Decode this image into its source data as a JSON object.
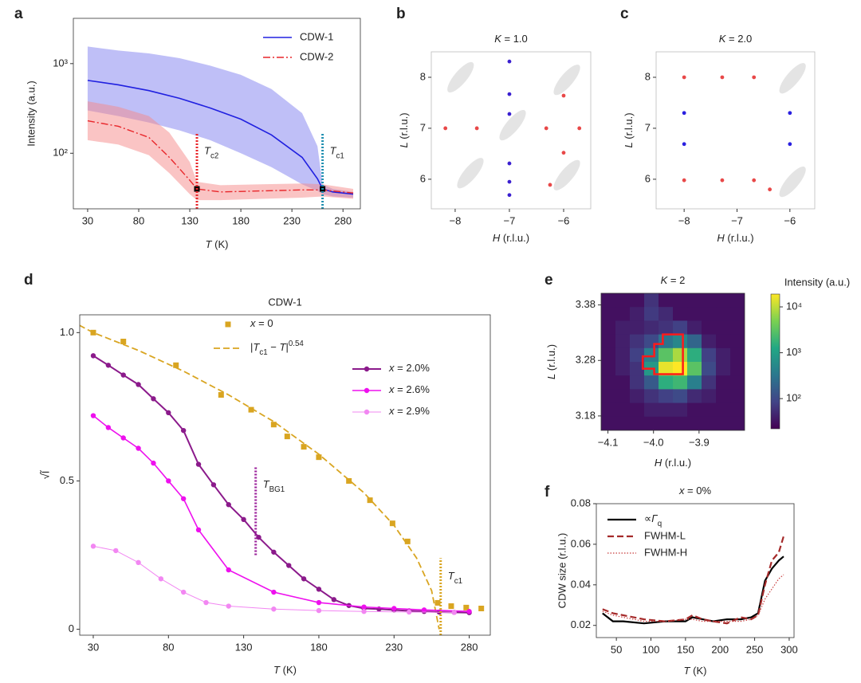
{
  "chart_data": [
    {
      "panel": "a",
      "type": "line",
      "ylog": true,
      "xlabel": [
        {
          "i": "T"
        },
        " (K)"
      ],
      "ylabel": "Intensity (a.u.)",
      "xlim": [
        16,
        297
      ],
      "ylim": [
        24,
        3200
      ],
      "xticks": [
        30,
        80,
        130,
        180,
        230,
        280
      ],
      "yticks": [
        {
          "value": 100,
          "label": "10²"
        },
        {
          "value": 1000,
          "label": "10³"
        }
      ],
      "legend": "upper right",
      "series": [
        {
          "name": "CDW-1",
          "color": "#2020e0",
          "dash": "solid",
          "linewidth": 1.6,
          "band_color": "#7f7ff0",
          "x": [
            30,
            60,
            90,
            120,
            150,
            180,
            210,
            240,
            255,
            260,
            270,
            290
          ],
          "values": [
            650,
            580,
            500,
            410,
            320,
            240,
            160,
            90,
            52,
            40,
            37,
            35
          ],
          "lower": [
            300,
            260,
            220,
            180,
            140,
            100,
            70,
            45,
            38,
            35,
            33,
            32
          ],
          "upper": [
            1550,
            1400,
            1300,
            1150,
            950,
            750,
            520,
            280,
            120,
            45,
            40,
            37
          ]
        },
        {
          "name": "CDW-2",
          "color": "#e8262a",
          "dash": "dashdot",
          "linewidth": 1.4,
          "band_color": "#f58a8a",
          "x": [
            30,
            60,
            90,
            110,
            130,
            137,
            160,
            200,
            240,
            260,
            290
          ],
          "values": [
            230,
            200,
            150,
            90,
            50,
            40,
            37,
            38,
            39,
            39,
            36
          ],
          "lower": [
            140,
            125,
            95,
            60,
            35,
            30,
            30,
            31,
            32,
            33,
            31
          ],
          "upper": [
            380,
            330,
            260,
            170,
            80,
            48,
            44,
            45,
            46,
            45,
            40
          ]
        }
      ],
      "markers": {
        "x": [
          137,
          260
        ],
        "y": [
          40,
          40
        ],
        "color": "#000000"
      },
      "vlines": [
        {
          "x": 137,
          "y": [
            24,
            170
          ],
          "color": "#e8262a",
          "label": [
            {
              "i": "T"
            },
            {
              "sub": "c2"
            }
          ]
        },
        {
          "x": 260,
          "y": [
            24,
            170
          ],
          "color": "#1f8fb0",
          "label": [
            {
              "i": "T"
            },
            {
              "sub": "c1"
            }
          ]
        }
      ]
    },
    {
      "panel": "b",
      "type": "scatter",
      "title": [
        {
          "i": "K"
        },
        " = 1.0"
      ],
      "xlabel": [
        {
          "i": "H"
        },
        " (r.l.u.)"
      ],
      "ylabel": [
        {
          "i": "L"
        },
        " (r.l.u.)"
      ],
      "xlim": [
        -8.44,
        -5.5
      ],
      "ylim": [
        5.42,
        8.5
      ],
      "xticks": [
        {
          "value": -8,
          "label": "−8"
        },
        {
          "value": -7,
          "label": "−7"
        },
        {
          "value": -6,
          "label": "−6"
        }
      ],
      "yticks": [
        6,
        7,
        8
      ],
      "series": [
        {
          "marker": "ellipse",
          "color": "#e4e4e4",
          "x": [
            -7.9,
            -5.94,
            -6.94,
            -7.72,
            -5.94
          ],
          "values": [
            8.0,
            7.95,
            7.06,
            6.12,
            6.08
          ]
        },
        {
          "marker": "dot",
          "color": "#3a1fd0",
          "x": [
            -7,
            -7,
            -7,
            -7,
            -7,
            -7
          ],
          "values": [
            8.31,
            7.67,
            7.28,
            6.31,
            5.95,
            5.69
          ]
        },
        {
          "marker": "dot",
          "color": "#e84848",
          "x": [
            -8.18,
            -7.6,
            -6.32,
            -5.71,
            -6.0,
            -6.0,
            -6.25
          ],
          "values": [
            7.0,
            7.0,
            7.0,
            7.0,
            7.64,
            6.52,
            5.89
          ]
        }
      ]
    },
    {
      "panel": "c",
      "type": "scatter",
      "title": [
        {
          "i": "K"
        },
        " = 2.0"
      ],
      "xlabel": [
        {
          "i": "H"
        },
        " (r.l.u.)"
      ],
      "ylabel": [
        {
          "i": "L"
        },
        " (r.l.u.)"
      ],
      "xlim": [
        -8.53,
        -5.53
      ],
      "ylim": [
        5.42,
        8.5
      ],
      "xticks": [
        {
          "value": -8,
          "label": "−8"
        },
        {
          "value": -7,
          "label": "−7"
        },
        {
          "value": -6,
          "label": "−6"
        }
      ],
      "yticks": [
        6,
        7,
        8
      ],
      "series": [
        {
          "marker": "ellipse",
          "color": "#e4e4e4",
          "x": [
            -5.95,
            -5.95
          ],
          "values": [
            7.98,
            5.95
          ]
        },
        {
          "marker": "dot",
          "color": "#2a20e0",
          "x": [
            -8,
            -8,
            -6,
            -6
          ],
          "values": [
            7.3,
            6.69,
            7.3,
            6.69
          ]
        },
        {
          "marker": "dot",
          "color": "#e84848",
          "x": [
            -8,
            -7.28,
            -6.68,
            -8,
            -7.28,
            -6.68,
            -6.38
          ],
          "values": [
            8.0,
            8.0,
            8.0,
            5.98,
            5.98,
            5.98,
            5.8
          ]
        }
      ]
    },
    {
      "panel": "d",
      "type": "line",
      "title": "CDW-1",
      "xlabel": [
        {
          "i": "T"
        },
        " (K)"
      ],
      "ylabel": "√Ĩ",
      "xlim": [
        21,
        294
      ],
      "ylim": [
        -0.02,
        1.06
      ],
      "xticks": [
        30,
        80,
        130,
        180,
        230,
        280
      ],
      "yticks": [
        0,
        0.5,
        {
          "value": 1,
          "label": "1.0"
        }
      ],
      "series": [
        {
          "name": [
            {
              "i": "x"
            },
            " = 0"
          ],
          "color": "#d9a521",
          "dash": "none",
          "marker": "square",
          "linewidth": 1.5,
          "x": [
            30,
            50,
            85,
            115,
            135,
            150,
            159,
            170,
            180,
            200,
            214,
            229,
            239,
            259,
            268,
            278,
            288
          ],
          "values": [
            1.0,
            0.97,
            0.89,
            0.79,
            0.74,
            0.69,
            0.65,
            0.615,
            0.58,
            0.5,
            0.435,
            0.357,
            0.296,
            0.089,
            0.078,
            0.073,
            0.07
          ]
        },
        {
          "name": [
            "|",
            {
              "i": "T"
            },
            {
              "sub": "c1"
            },
            " − ",
            {
              "i": "T"
            },
            "|",
            {
              "sup": "0.54"
            }
          ],
          "color": "#d9a521",
          "dash": "dash",
          "linewidth": 1.8,
          "x": [
            15,
            30,
            60,
            90,
            120,
            150,
            180,
            210,
            230,
            245,
            255,
            260
          ],
          "values": [
            1.04,
            1.0,
            0.94,
            0.87,
            0.79,
            0.7,
            0.59,
            0.46,
            0.35,
            0.24,
            0.13,
            0
          ]
        },
        {
          "name": [
            {
              "i": "x"
            },
            " = 2.0%"
          ],
          "color": "#8b1a8b",
          "dash": "solid",
          "marker": "circle",
          "linewidth": 2,
          "x": [
            30,
            40,
            50,
            60,
            70,
            80,
            90,
            100,
            110,
            120,
            130,
            140,
            150,
            160,
            170,
            180,
            190,
            200,
            210,
            220,
            230,
            240,
            250,
            260,
            270,
            280
          ],
          "values": [
            0.922,
            0.89,
            0.857,
            0.825,
            0.777,
            0.73,
            0.67,
            0.556,
            0.487,
            0.42,
            0.37,
            0.31,
            0.26,
            0.215,
            0.17,
            0.135,
            0.1,
            0.08,
            0.07,
            0.068,
            0.065,
            0.062,
            0.06,
            0.058,
            0.057,
            0.056
          ]
        },
        {
          "name": [
            {
              "i": "x"
            },
            " = 2.6%"
          ],
          "color": "#ee10ee",
          "dash": "solid",
          "marker": "circle",
          "linewidth": 1.6,
          "x": [
            30,
            40,
            50,
            60,
            70,
            80,
            90,
            100,
            120,
            150,
            180,
            210,
            230,
            250,
            280
          ],
          "values": [
            0.72,
            0.68,
            0.645,
            0.61,
            0.56,
            0.5,
            0.44,
            0.335,
            0.2,
            0.125,
            0.09,
            0.075,
            0.07,
            0.065,
            0.06
          ]
        },
        {
          "name": [
            {
              "i": "x"
            },
            " = 2.9%"
          ],
          "color": "#f287f2",
          "dash": "solid",
          "marker": "circle",
          "linewidth": 1,
          "x": [
            30,
            45,
            60,
            75,
            90,
            105,
            120,
            150,
            180,
            210,
            240,
            270
          ],
          "values": [
            0.28,
            0.265,
            0.225,
            0.17,
            0.125,
            0.09,
            0.078,
            0.068,
            0.063,
            0.06,
            0.058,
            0.057
          ]
        }
      ],
      "vlines": [
        {
          "x": 138,
          "y": [
            0.25,
            0.55
          ],
          "color": "#9b209b",
          "label": [
            {
              "i": "T"
            },
            {
              "sub": "BG1"
            }
          ]
        },
        {
          "x": 261,
          "y": [
            -0.02,
            0.24
          ],
          "color": "#d9a521",
          "label": [
            {
              "i": "T"
            },
            {
              "sub": "c1"
            }
          ]
        }
      ]
    },
    {
      "panel": "e",
      "type": "heatmap",
      "title": [
        {
          "i": "K"
        },
        " = 2"
      ],
      "xlabel": [
        {
          "i": "H"
        },
        " (r.l.u.)"
      ],
      "ylabel": [
        {
          "i": "L"
        },
        " (r.l.u.)"
      ],
      "xlim": [
        -4.115,
        -3.8
      ],
      "ylim": [
        3.154,
        3.401
      ],
      "xticks": [
        {
          "value": -4.1,
          "label": "−4.1"
        },
        {
          "value": -4,
          "label": "−4.0"
        },
        {
          "value": -3.9,
          "label": "−3.9"
        }
      ],
      "yticks": [
        3.18,
        3.28,
        3.38
      ],
      "colormap": "viridis",
      "clog": true,
      "clim": [
        22,
        19000
      ],
      "colorbar_label": "Intensity (a.u.)",
      "cticks": [
        {
          "value": 100,
          "label": "10²"
        },
        {
          "value": 1000,
          "label": "10³"
        },
        {
          "value": 10000,
          "label": "10⁴"
        }
      ],
      "outline_color": "#ff1a1a",
      "z": [
        [
          30,
          30,
          30,
          60,
          30,
          30,
          30,
          30,
          30,
          30
        ],
        [
          30,
          30,
          40,
          70,
          50,
          30,
          30,
          30,
          30,
          30
        ],
        [
          30,
          40,
          40,
          50,
          60,
          80,
          40,
          30,
          30,
          30
        ],
        [
          30,
          40,
          60,
          100,
          300,
          500,
          200,
          40,
          30,
          30
        ],
        [
          30,
          40,
          80,
          400,
          3000,
          8000,
          1500,
          80,
          40,
          30
        ],
        [
          30,
          40,
          60,
          800,
          15000,
          19000,
          3000,
          100,
          40,
          30
        ],
        [
          30,
          30,
          60,
          150,
          1500,
          2000,
          400,
          60,
          30,
          30
        ],
        [
          30,
          30,
          40,
          60,
          80,
          100,
          50,
          40,
          30,
          30
        ],
        [
          30,
          30,
          30,
          40,
          40,
          40,
          30,
          30,
          30,
          30
        ],
        [
          30,
          30,
          30,
          30,
          30,
          30,
          30,
          30,
          30,
          30
        ]
      ]
    },
    {
      "panel": "f",
      "type": "line",
      "title": [
        {
          "i": "x"
        },
        " = 0%"
      ],
      "xlabel": [
        {
          "i": "T"
        },
        " (K)"
      ],
      "ylabel": "CDW size (r.l.u.)",
      "xlim": [
        21,
        307
      ],
      "ylim": [
        0.014,
        0.08
      ],
      "xticks": [
        50,
        100,
        150,
        200,
        250,
        300
      ],
      "yticks": [
        0.02,
        0.04,
        0.06,
        0.08
      ],
      "legend": "upper left",
      "series": [
        {
          "name": [
            "∝",
            {
              "i": "Γ"
            },
            {
              "sub": "q"
            }
          ],
          "color": "#000000",
          "dash": "solid",
          "linewidth": 2.2,
          "x": [
            30,
            45,
            60,
            90,
            120,
            150,
            160,
            175,
            190,
            210,
            230,
            245,
            255,
            265,
            275,
            285,
            292
          ],
          "values": [
            0.026,
            0.022,
            0.022,
            0.021,
            0.022,
            0.022,
            0.024,
            0.023,
            0.022,
            0.023,
            0.023,
            0.024,
            0.026,
            0.042,
            0.048,
            0.052,
            0.054
          ]
        },
        {
          "name": "FWHM-L",
          "color": "#a52a2a",
          "dash": "dash",
          "linewidth": 2.2,
          "x": [
            30,
            45,
            60,
            90,
            120,
            150,
            160,
            175,
            190,
            210,
            230,
            245,
            255,
            265,
            275,
            285,
            292
          ],
          "values": [
            0.028,
            0.026,
            0.025,
            0.023,
            0.022,
            0.023,
            0.025,
            0.023,
            0.022,
            0.021,
            0.024,
            0.023,
            0.025,
            0.04,
            0.052,
            0.056,
            0.064
          ]
        },
        {
          "name": "FWHM-H",
          "color": "#c83c3c",
          "dash": "dot",
          "linewidth": 1.2,
          "x": [
            30,
            45,
            60,
            90,
            120,
            150,
            160,
            175,
            190,
            210,
            230,
            245,
            255,
            265,
            275,
            285,
            292
          ],
          "values": [
            0.027,
            0.025,
            0.024,
            0.022,
            0.022,
            0.023,
            0.023,
            0.022,
            0.022,
            0.022,
            0.022,
            0.023,
            0.025,
            0.033,
            0.038,
            0.043,
            0.045
          ]
        }
      ]
    }
  ]
}
